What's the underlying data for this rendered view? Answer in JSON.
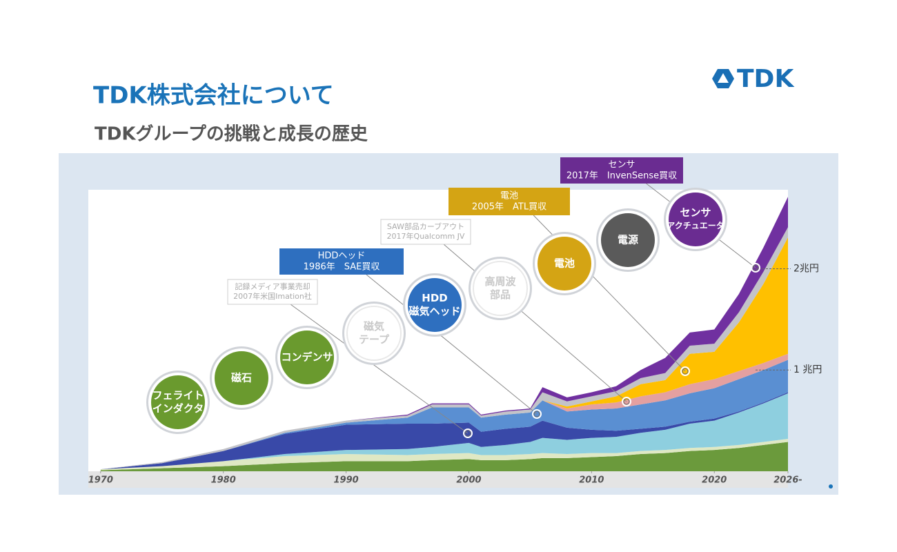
{
  "header": {
    "title": "TDK株式会社について",
    "subtitle": "TDKグループの挑戦と成長の歴史",
    "logo": "TDK"
  },
  "chart_data": {
    "type": "area",
    "stacked": true,
    "x": [
      1970,
      1975,
      1980,
      1985,
      1990,
      1995,
      1997,
      2000,
      2001,
      2003,
      2005,
      2006,
      2008,
      2010,
      2012,
      2014,
      2016,
      2018,
      2020,
      2022,
      2024,
      2026
    ],
    "series": [
      {
        "color": "#6b9a3c",
        "values": [
          0.01,
          0.03,
          0.05,
          0.08,
          0.1,
          0.1,
          0.11,
          0.12,
          0.11,
          0.11,
          0.12,
          0.13,
          0.13,
          0.14,
          0.15,
          0.17,
          0.18,
          0.2,
          0.21,
          0.23,
          0.26,
          0.29
        ]
      },
      {
        "color": "#dfe8c4",
        "values": [
          0.01,
          0.02,
          0.05,
          0.07,
          0.07,
          0.06,
          0.06,
          0.06,
          0.05,
          0.05,
          0.05,
          0.05,
          0.04,
          0.04,
          0.03,
          0.03,
          0.03,
          0.03,
          0.03,
          0.03,
          0.03,
          0.03
        ]
      },
      {
        "color": "#8ecfdf",
        "values": [
          0,
          0,
          0,
          0.02,
          0.04,
          0.06,
          0.07,
          0.1,
          0.08,
          0.1,
          0.12,
          0.15,
          0.14,
          0.15,
          0.16,
          0.18,
          0.2,
          0.24,
          0.26,
          0.32,
          0.38,
          0.45
        ]
      },
      {
        "color": "#3949a8",
        "values": [
          0,
          0.03,
          0.1,
          0.2,
          0.25,
          0.25,
          0.23,
          0.2,
          0.15,
          0.16,
          0.15,
          0.17,
          0.12,
          0.08,
          0.06,
          0.04,
          0.03,
          0.02,
          0.02,
          0.01,
          0.01,
          0.01
        ]
      },
      {
        "color": "#5a8fd2",
        "values": [
          0,
          0,
          0,
          0.01,
          0.02,
          0.06,
          0.16,
          0.15,
          0.14,
          0.14,
          0.14,
          0.2,
          0.16,
          0.2,
          0.22,
          0.24,
          0.26,
          0.28,
          0.3,
          0.32,
          0.32,
          0.32
        ]
      },
      {
        "color": "#e4a0a0",
        "values": [
          0,
          0,
          0,
          0,
          0,
          0,
          0,
          0,
          0,
          0,
          0,
          0,
          0.03,
          0.05,
          0.06,
          0.08,
          0.08,
          0.09,
          0.09,
          0.08,
          0.07,
          0.06
        ]
      },
      {
        "color": "#ffc000",
        "values": [
          0,
          0,
          0,
          0,
          0,
          0,
          0,
          0,
          0,
          0,
          0,
          0,
          0.02,
          0.03,
          0.06,
          0.12,
          0.12,
          0.3,
          0.27,
          0.48,
          0.78,
          1.15
        ]
      },
      {
        "color": "#c3c3c8",
        "values": [
          0,
          0.01,
          0.02,
          0.02,
          0.02,
          0.02,
          0.03,
          0.03,
          0.02,
          0.03,
          0.03,
          0.08,
          0.05,
          0.05,
          0.05,
          0.06,
          0.07,
          0.08,
          0.08,
          0.1,
          0.12,
          0.1
        ]
      },
      {
        "color": "#7030a0",
        "values": [
          0,
          0,
          0,
          0,
          0,
          0.01,
          0.01,
          0.01,
          0.01,
          0.01,
          0.01,
          0.05,
          0.04,
          0.04,
          0.05,
          0.08,
          0.15,
          0.13,
          0.14,
          0.18,
          0.24,
          0.3
        ]
      }
    ],
    "xlim": [
      1969,
      2026
    ],
    "xticks": [
      1970,
      1980,
      1990,
      2000,
      2010,
      2020,
      {
        "value": 2026,
        "label": "2026-"
      }
    ],
    "ylim": [
      0,
      2.78
    ],
    "yticks": [
      {
        "value": 1,
        "label": "1 兆円"
      },
      {
        "value": 2,
        "label": "2兆円"
      }
    ],
    "bubbles": [
      {
        "lines": [
          "フェライト",
          "インダクタ"
        ],
        "color": "#6a9a2e"
      },
      {
        "lines": [
          "磁石"
        ],
        "color": "#6a9a2e"
      },
      {
        "lines": [
          "コンデンサ"
        ],
        "color": "#6a9a2e"
      },
      {
        "lines": [
          "磁気",
          "テープ"
        ],
        "color": "#ffffff"
      },
      {
        "lines": [
          "HDD",
          "磁気ヘッド"
        ],
        "color": "#2e6fbf"
      },
      {
        "lines": [
          "高周波",
          "部品"
        ],
        "color": "#ffffff"
      },
      {
        "lines": [
          "電池"
        ],
        "color": "#d4a414"
      },
      {
        "lines": [
          "電源"
        ],
        "color": "#5a5a5a"
      },
      {
        "lines": [
          "センサ",
          "アクチュエータ"
        ],
        "color": "#6a2c91"
      }
    ],
    "callouts": [
      {
        "lines": [
          "記録メディア事業売却",
          "2007年米国Imation社"
        ],
        "color": "#ffffff"
      },
      {
        "lines": [
          "HDDヘッド",
          "1986年　SAE買収"
        ],
        "color": "#2e6fbf"
      },
      {
        "lines": [
          "SAW部品カーブアウト",
          "2017年Qualcomm JV"
        ],
        "color": "#ffffff"
      },
      {
        "lines": [
          "電池",
          "2005年　ATL買収"
        ],
        "color": "#d4a414"
      },
      {
        "lines": [
          "センサ",
          "2017年　InvenSense買収"
        ],
        "color": "#6a2c91"
      }
    ]
  }
}
